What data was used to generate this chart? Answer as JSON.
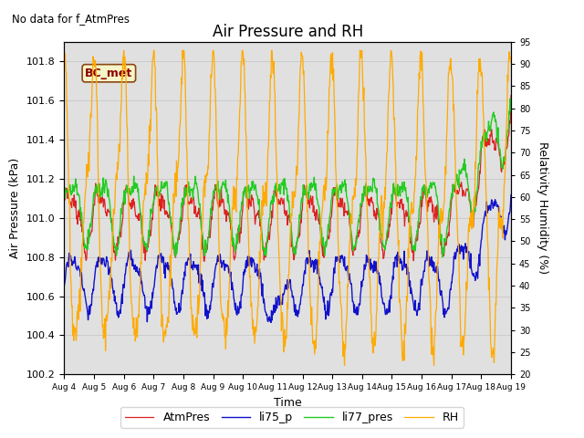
{
  "title": "Air Pressure and RH",
  "subtitle": "No data for f_AtmPres",
  "xlabel": "Time",
  "ylabel_left": "Air Pressure (kPa)",
  "ylabel_right": "Relativity Humidity (%)",
  "legend_labels": [
    "AtmPres",
    "li75_p",
    "li77_pres",
    "RH"
  ],
  "legend_colors": [
    "#dd2222",
    "#1111cc",
    "#22cc22",
    "#ffaa00"
  ],
  "xlim": [
    0,
    15
  ],
  "ylim_left": [
    100.2,
    101.9
  ],
  "ylim_right": [
    20,
    95
  ],
  "xtick_labels": [
    "Aug 4",
    "Aug 5",
    "Aug 6",
    "Aug 7",
    "Aug 8",
    "Aug 9",
    "Aug 10",
    "Aug 11",
    "Aug 12",
    "Aug 13",
    "Aug 14",
    "Aug 15",
    "Aug 16",
    "Aug 17",
    "Aug 18",
    "Aug 19"
  ],
  "xtick_positions": [
    0,
    1,
    2,
    3,
    4,
    5,
    6,
    7,
    8,
    9,
    10,
    11,
    12,
    13,
    14,
    15
  ],
  "ytick_left": [
    100.2,
    100.4,
    100.6,
    100.8,
    101.0,
    101.2,
    101.4,
    101.6,
    101.8
  ],
  "ytick_right": [
    20,
    25,
    30,
    35,
    40,
    45,
    50,
    55,
    60,
    65,
    70,
    75,
    80,
    85,
    90,
    95
  ],
  "annotation_text": "BC_met",
  "annotation_color": "#8B0000",
  "annotation_bg": "#f5f5c8",
  "annotation_border": "#8B4513"
}
